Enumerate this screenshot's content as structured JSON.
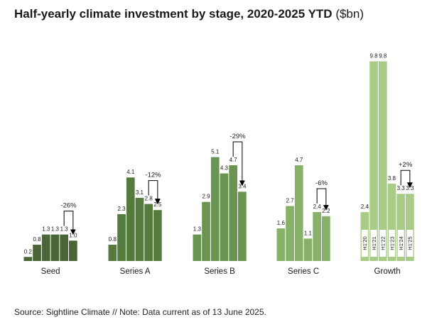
{
  "title": "Half-yearly climate investment by stage, 2020-2025 YTD",
  "title_unit": "($bn)",
  "footer": "Source: Sightline Climate  //  Note: Data current as of 13 June 2025.",
  "chart_data": {
    "type": "bar",
    "title": "Half-yearly climate investment by stage, 2020-2025 YTD ($bn)",
    "periods": [
      "H1'20",
      "H1'21",
      "H1'22",
      "H1'23",
      "H1'24",
      "H1'25"
    ],
    "ylim": [
      0,
      10.2
    ],
    "grid": false,
    "legend": "none",
    "groups": [
      {
        "name": "Seed",
        "color": "#4a6636",
        "values": [
          0.2,
          0.8,
          1.3,
          1.3,
          1.3,
          1.0
        ],
        "labels": [
          "0.2",
          "0.8",
          "1.3",
          "1.3",
          "1.3",
          "1.0"
        ],
        "change": "-26%"
      },
      {
        "name": "Series A",
        "color": "#547a3d",
        "values": [
          0.8,
          2.3,
          4.1,
          3.1,
          2.8,
          2.5
        ],
        "labels": [
          "0.8",
          "2.3",
          "4.1",
          "3.1",
          "2.8",
          "2.5"
        ],
        "change": "-12%"
      },
      {
        "name": "Series B",
        "color": "#6a9550",
        "values": [
          1.3,
          2.9,
          5.1,
          4.3,
          4.7,
          3.4
        ],
        "labels": [
          "1.3",
          "2.9",
          "5.1",
          "4.3",
          "4.7",
          "3.4"
        ],
        "change": "-29%"
      },
      {
        "name": "Series C",
        "color": "#87b068",
        "values": [
          1.6,
          2.7,
          4.7,
          1.1,
          2.4,
          2.2
        ],
        "labels": [
          "1.6",
          "2.7",
          "4.7",
          "1.1",
          "2.4",
          "2.2"
        ],
        "change": "-6%"
      },
      {
        "name": "Growth",
        "color": "#a8cb87",
        "values": [
          2.4,
          9.8,
          9.8,
          3.8,
          3.3,
          3.3
        ],
        "labels": [
          "2.4",
          "9.8",
          "9.8",
          "3.8",
          "3.3",
          "3.3"
        ],
        "change": "+2%"
      }
    ]
  }
}
